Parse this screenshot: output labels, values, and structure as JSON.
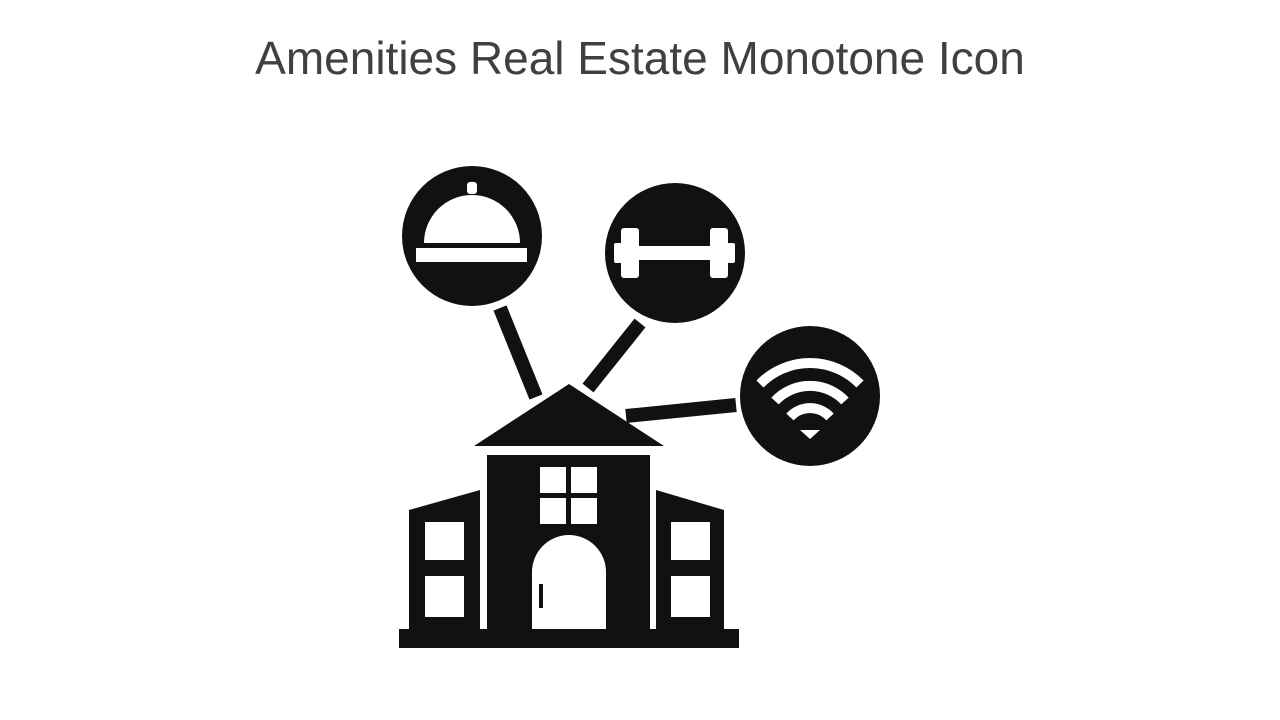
{
  "slide": {
    "title": "Amenities Real Estate Monotone Icon"
  },
  "illustration": {
    "icon": "amenities-real-estate-icon",
    "parts": [
      "building-icon",
      "food-cloche-icon",
      "dumbbell-icon",
      "wifi-icon"
    ],
    "colors": {
      "ink": "#111111",
      "background": "#ffffff",
      "title": "#404040"
    }
  }
}
